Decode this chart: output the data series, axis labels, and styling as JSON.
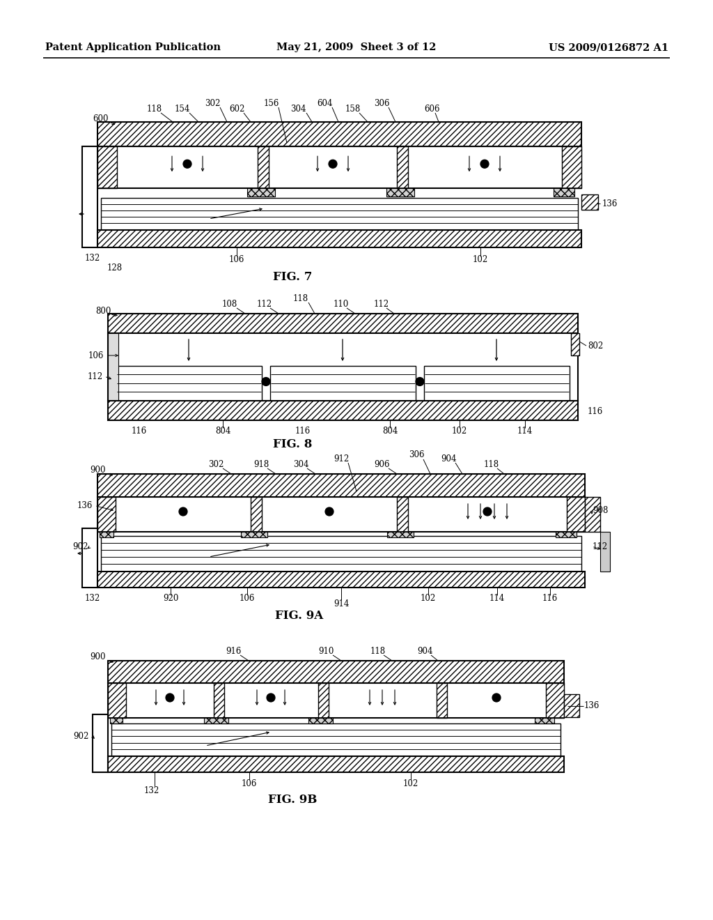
{
  "header_left": "Patent Application Publication",
  "header_center": "May 21, 2009  Sheet 3 of 12",
  "header_right": "US 2009/0126872 A1",
  "fig7_label": "FIG. 7",
  "fig8_label": "FIG. 8",
  "fig9a_label": "FIG. 9A",
  "fig9b_label": "FIG. 9B",
  "background": "#ffffff",
  "font_size_header": 10.5,
  "font_size_label": 8.5,
  "font_size_fig": 12
}
